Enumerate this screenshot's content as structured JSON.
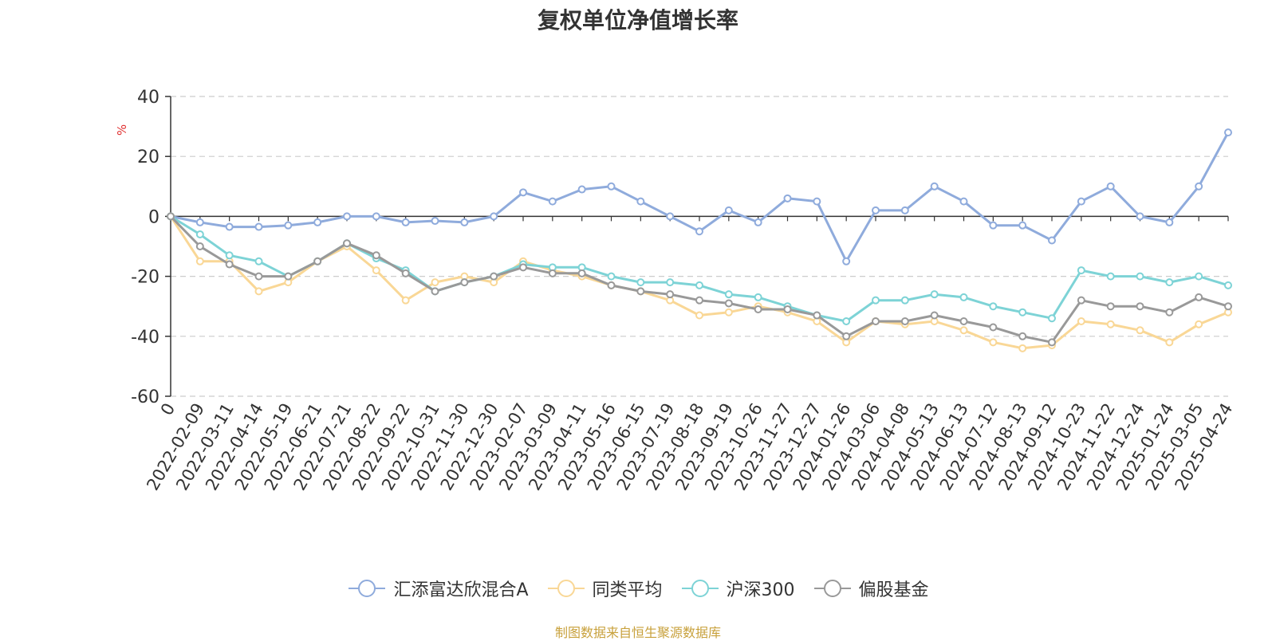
{
  "chart_data": {
    "type": "line",
    "title": "复权单位净值增长率",
    "ylabel": "%",
    "ylim": [
      -60,
      40
    ],
    "yticks": [
      40,
      20,
      0,
      -20,
      -40,
      -60
    ],
    "x_tick_labels": [
      "0",
      "2022-02-09",
      "2022-03-11",
      "2022-04-14",
      "2022-05-19",
      "2022-06-21",
      "2022-07-21",
      "2022-08-22",
      "2022-09-22",
      "2022-10-31",
      "2022-11-30",
      "2022-12-30",
      "2023-02-07",
      "2023-03-09",
      "2023-04-11",
      "2023-05-16",
      "2023-06-15",
      "2023-07-19",
      "2023-08-18",
      "2023-09-19",
      "2023-10-26",
      "2023-11-27",
      "2023-12-27",
      "2024-01-26",
      "2024-03-06",
      "2024-04-08",
      "2024-05-13",
      "2024-06-13",
      "2024-07-12",
      "2024-08-13",
      "2024-09-12",
      "2024-10-23",
      "2024-11-22",
      "2024-12-24",
      "2025-01-24",
      "2025-03-05",
      "2025-04-24"
    ],
    "grid": "horizontal dashed",
    "legend_position": "bottom",
    "series": [
      {
        "name": "汇添富达欣混合A",
        "color": "#8fabdc",
        "values": [
          0,
          -2,
          -3.5,
          -3.5,
          -3,
          -2,
          0,
          0,
          -2,
          -1.5,
          -2,
          0,
          8,
          5,
          9,
          10,
          5,
          0,
          -5,
          2,
          -2,
          6,
          5,
          -15,
          2,
          2,
          10,
          5,
          -3,
          -3,
          -8,
          5,
          10,
          0,
          -2,
          10,
          28
        ]
      },
      {
        "name": "同类平均",
        "color": "#f9d796",
        "values": [
          0,
          -15,
          -15,
          -25,
          -22,
          -15,
          -10,
          -18,
          -28,
          -22,
          -20,
          -22,
          -15,
          -18,
          -20,
          -23,
          -25,
          -28,
          -33,
          -32,
          -30,
          -32,
          -35,
          -42,
          -35,
          -36,
          -35,
          -38,
          -42,
          -44,
          -43,
          -35,
          -36,
          -38,
          -42,
          -36,
          -32
        ]
      },
      {
        "name": "沪深300",
        "color": "#7dd3d6",
        "values": [
          0,
          -6,
          -13,
          -15,
          -20,
          -15,
          -9,
          -14,
          -18,
          -25,
          -22,
          -20,
          -16,
          -17,
          -17,
          -20,
          -22,
          -22,
          -23,
          -26,
          -27,
          -30,
          -33,
          -35,
          -28,
          -28,
          -26,
          -27,
          -30,
          -32,
          -34,
          -18,
          -20,
          -20,
          -22,
          -20,
          -23
        ]
      },
      {
        "name": "偏股基金",
        "color": "#999999",
        "values": [
          0,
          -10,
          -16,
          -20,
          -20,
          -15,
          -9,
          -13,
          -19,
          -25,
          -22,
          -20,
          -17,
          -19,
          -19,
          -23,
          -25,
          -26,
          -28,
          -29,
          -31,
          -31,
          -33,
          -40,
          -35,
          -35,
          -33,
          -35,
          -37,
          -40,
          -42,
          -28,
          -30,
          -30,
          -32,
          -27,
          -30
        ]
      }
    ]
  }
}
